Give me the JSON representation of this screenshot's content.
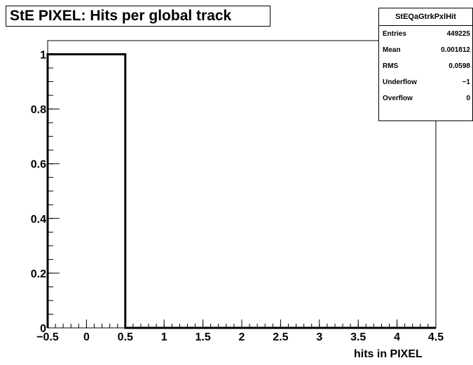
{
  "title": "StE PIXEL: Hits per global track",
  "stats": {
    "name": "StEQaGtrkPxlHit",
    "rows": [
      {
        "label": "Entries",
        "value": "449225"
      },
      {
        "label": "Mean",
        "value": "0.001812"
      },
      {
        "label": "RMS",
        "value": "0.0598"
      },
      {
        "label": "Underflow",
        "value": "−1"
      },
      {
        "label": "Overflow",
        "value": "0"
      }
    ]
  },
  "chart_data": {
    "type": "bar",
    "title": "StE PIXEL: Hits per global track",
    "xlabel": "hits in PIXEL",
    "ylabel": "",
    "xlim": [
      -0.5,
      4.5
    ],
    "ylim": [
      0,
      1.05
    ],
    "bins": [
      {
        "low": -0.5,
        "high": 0.5,
        "value": 1.0
      },
      {
        "low": 0.5,
        "high": 1.5,
        "value": 0
      },
      {
        "low": 1.5,
        "high": 2.5,
        "value": 0
      },
      {
        "low": 2.5,
        "high": 3.5,
        "value": 0
      },
      {
        "low": 3.5,
        "high": 4.5,
        "value": 0
      }
    ],
    "x_ticks": [
      "−0.5",
      "0",
      "0.5",
      "1",
      "1.5",
      "2",
      "2.5",
      "3",
      "3.5",
      "4",
      "4.5"
    ],
    "y_ticks": [
      "0",
      "0.2",
      "0.4",
      "0.6",
      "0.8",
      "1"
    ],
    "grid": false,
    "legend": "none"
  }
}
